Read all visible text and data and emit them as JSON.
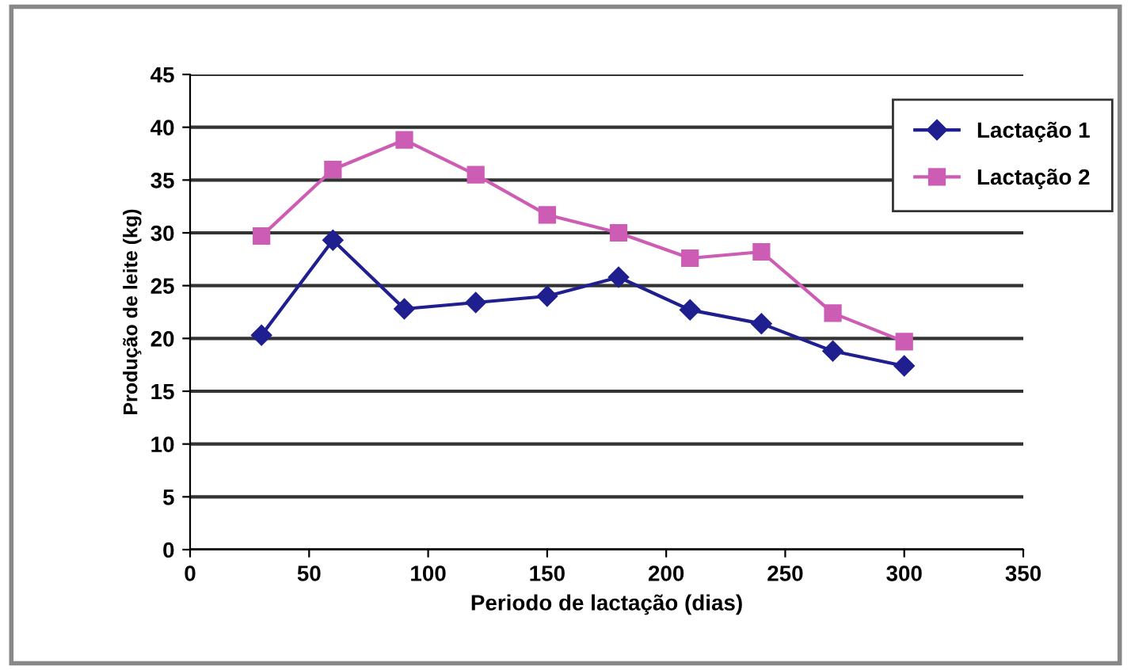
{
  "chart_data": {
    "type": "line",
    "xlabel": "Periodo de lactação (dias)",
    "ylabel": "Produção de leite (kg)",
    "x": [
      30,
      60,
      90,
      120,
      150,
      180,
      210,
      240,
      270,
      300
    ],
    "series": [
      {
        "name": "Lactação 1",
        "color": "#1f1f8f",
        "marker": "diamond",
        "values": [
          20.3,
          29.3,
          22.8,
          23.4,
          24.0,
          25.8,
          22.7,
          21.4,
          18.8,
          17.4
        ]
      },
      {
        "name": "Lactação 2",
        "color": "#cc5cb4",
        "marker": "square",
        "values": [
          29.7,
          36.0,
          38.8,
          35.5,
          31.7,
          30.0,
          27.6,
          28.2,
          22.4,
          19.7
        ]
      }
    ],
    "xlim": [
      0,
      350
    ],
    "xticks": [
      0,
      50,
      100,
      150,
      200,
      250,
      300,
      350
    ],
    "ylim": [
      0,
      45
    ],
    "yticks": [
      0,
      5,
      10,
      15,
      20,
      25,
      30,
      35,
      40,
      45
    ],
    "grid": "y",
    "legend": "top right",
    "line_style": "solid"
  }
}
